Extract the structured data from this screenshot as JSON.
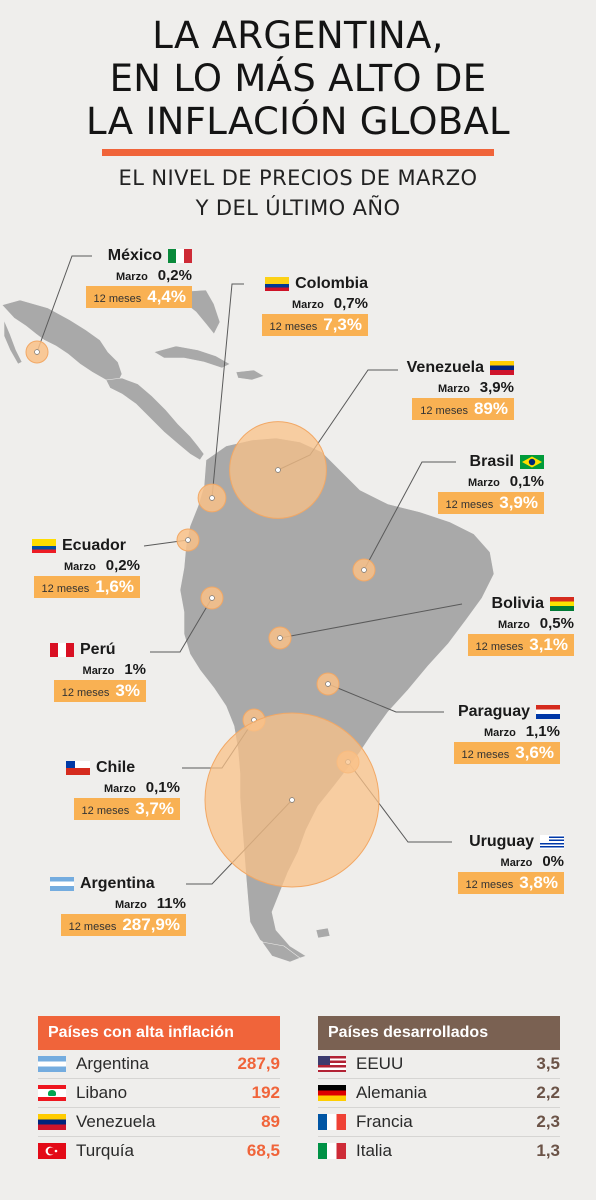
{
  "title_lines": [
    "LA ARGENTINA,",
    "EN LO MÁS ALTO DE",
    "LA INFLACIÓN GLOBAL"
  ],
  "subtitle_lines": [
    "EL NIVEL DE PRECIOS DE MARZO",
    "Y DEL ÚLTIMO AÑO"
  ],
  "colors": {
    "accent": "#f0643a",
    "bubble": "#f9b153",
    "bubble_fill": "#f9c188",
    "land": "#a9a9a9",
    "developed_header": "#7a6152",
    "high_value": "#f0643a",
    "developed_value": "#6b5347"
  },
  "chart_data": {
    "type": "map",
    "month_label": "Marzo",
    "year_label": "12 meses",
    "countries": [
      {
        "id": "mexico",
        "name": "México",
        "flag": "mexico-flag",
        "marzo": "0,2%",
        "year": "4,4%",
        "monthly": 0.2,
        "annual": 4.4
      },
      {
        "id": "colombia",
        "name": "Colombia",
        "flag": "colombia-flag",
        "marzo": "0,7%",
        "year": "7,3%",
        "monthly": 0.7,
        "annual": 7.3
      },
      {
        "id": "venezuela",
        "name": "Venezuela",
        "flag": "venezuela-flag",
        "marzo": "3,9%",
        "year": "89%",
        "monthly": 3.9,
        "annual": 89
      },
      {
        "id": "brasil",
        "name": "Brasil",
        "flag": "brasil-flag",
        "marzo": "0,1%",
        "year": "3,9%",
        "monthly": 0.1,
        "annual": 3.9
      },
      {
        "id": "ecuador",
        "name": "Ecuador",
        "flag": "ecuador-flag",
        "marzo": "0,2%",
        "year": "1,6%",
        "monthly": 0.2,
        "annual": 1.6
      },
      {
        "id": "bolivia",
        "name": "Bolivia",
        "flag": "bolivia-flag",
        "marzo": "0,5%",
        "year": "3,1%",
        "monthly": 0.5,
        "annual": 3.1
      },
      {
        "id": "peru",
        "name": "Perú",
        "flag": "peru-flag",
        "marzo": "1%",
        "year": "3%",
        "monthly": 1,
        "annual": 3
      },
      {
        "id": "paraguay",
        "name": "Paraguay",
        "flag": "paraguay-flag",
        "marzo": "1,1%",
        "year": "3,6%",
        "monthly": 1.1,
        "annual": 3.6
      },
      {
        "id": "chile",
        "name": "Chile",
        "flag": "chile-flag",
        "marzo": "0,1%",
        "year": "3,7%",
        "monthly": 0.1,
        "annual": 3.7
      },
      {
        "id": "uruguay",
        "name": "Uruguay",
        "flag": "uruguay-flag",
        "marzo": "0%",
        "year": "3,8%",
        "monthly": 0,
        "annual": 3.8
      },
      {
        "id": "argentina",
        "name": "Argentina",
        "flag": "argentina-flag",
        "marzo": "11%",
        "year": "287,9%",
        "monthly": 11,
        "annual": 287.9
      }
    ]
  },
  "tables": {
    "high": {
      "title": "Países con alta inflación",
      "rows": [
        {
          "name": "Argentina",
          "value": "287,9",
          "flag": "argentina-flag"
        },
        {
          "name": "Libano",
          "value": "192",
          "flag": "libano-flag"
        },
        {
          "name": "Venezuela",
          "value": "89",
          "flag": "venezuela-flag"
        },
        {
          "name": "Turquía",
          "value": "68,5",
          "flag": "turquia-flag"
        }
      ]
    },
    "developed": {
      "title": "Países desarrollados",
      "rows": [
        {
          "name": "EEUU",
          "value": "3,5",
          "flag": "eeuu-flag"
        },
        {
          "name": "Alemania",
          "value": "2,2",
          "flag": "alemania-flag"
        },
        {
          "name": "Francia",
          "value": "2,3",
          "flag": "francia-flag"
        },
        {
          "name": "Italia",
          "value": "1,3",
          "flag": "italia-flag"
        }
      ]
    }
  }
}
